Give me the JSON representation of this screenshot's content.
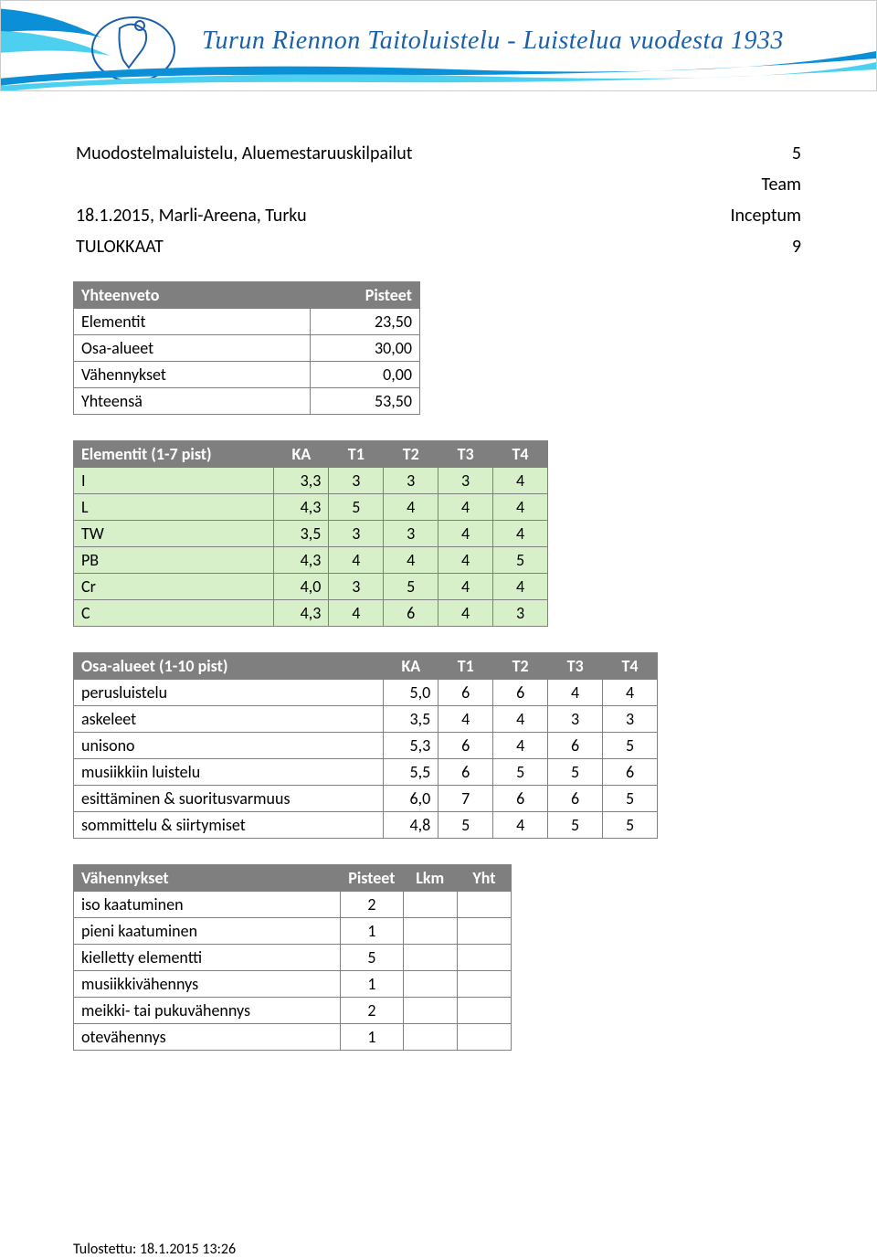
{
  "banner": {
    "title_text": "Turun Riennon Taitoluistelu - Luistelua vuodesta 1933",
    "title_color": "#1b5fa8",
    "swoosh_blue": "#0b8fd6",
    "swoosh_cyan": "#4dd0f0"
  },
  "meta": {
    "competition": "Muodostelmaluistelu, Aluemestaruuskilpailut",
    "date_venue": "18.1.2015, Marli-Areena, Turku",
    "category": "TULOKKAAT",
    "rank": "5",
    "team_label": "Team",
    "team_name": "Inceptum",
    "count": "9"
  },
  "summary": {
    "header": "Yhteenveto",
    "pisteet_header": "Pisteet",
    "rows": [
      {
        "label": "Elementit",
        "value": "23,50"
      },
      {
        "label": "Osa-alueet",
        "value": "30,00"
      },
      {
        "label": "Vähennykset",
        "value": "0,00"
      },
      {
        "label": "Yhteensä",
        "value": "53,50"
      }
    ]
  },
  "elements": {
    "header": "Elementit (1-7 pist)",
    "cols": [
      "KA",
      "T1",
      "T2",
      "T3",
      "T4"
    ],
    "row_bg": "#d7f0c9",
    "rows": [
      {
        "label": "I",
        "ka": "3,3",
        "t": [
          "3",
          "3",
          "3",
          "4"
        ]
      },
      {
        "label": "L",
        "ka": "4,3",
        "t": [
          "5",
          "4",
          "4",
          "4"
        ]
      },
      {
        "label": "TW",
        "ka": "3,5",
        "t": [
          "3",
          "3",
          "4",
          "4"
        ]
      },
      {
        "label": "PB",
        "ka": "4,3",
        "t": [
          "4",
          "4",
          "4",
          "5"
        ]
      },
      {
        "label": "Cr",
        "ka": "4,0",
        "t": [
          "3",
          "5",
          "4",
          "4"
        ]
      },
      {
        "label": "C",
        "ka": "4,3",
        "t": [
          "4",
          "6",
          "4",
          "3"
        ]
      }
    ]
  },
  "osa": {
    "header": "Osa-alueet (1-10 pist)",
    "cols": [
      "KA",
      "T1",
      "T2",
      "T3",
      "T4"
    ],
    "rows": [
      {
        "label": "perusluistelu",
        "ka": "5,0",
        "t": [
          "6",
          "6",
          "4",
          "4"
        ]
      },
      {
        "label": "askeleet",
        "ka": "3,5",
        "t": [
          "4",
          "4",
          "3",
          "3"
        ]
      },
      {
        "label": "unisono",
        "ka": "5,3",
        "t": [
          "6",
          "4",
          "6",
          "5"
        ]
      },
      {
        "label": "musiikkiin luistelu",
        "ka": "5,5",
        "t": [
          "6",
          "5",
          "5",
          "6"
        ]
      },
      {
        "label": "esittäminen & suoritusvarmuus",
        "ka": "6,0",
        "t": [
          "7",
          "6",
          "6",
          "5"
        ]
      },
      {
        "label": "sommittelu & siirtymiset",
        "ka": "4,8",
        "t": [
          "5",
          "4",
          "5",
          "5"
        ]
      }
    ]
  },
  "vah": {
    "header": "Vähennykset",
    "cols": [
      "Pisteet",
      "Lkm",
      "Yht"
    ],
    "rows": [
      {
        "label": "iso kaatuminen",
        "pisteet": "2",
        "lkm": "",
        "yht": ""
      },
      {
        "label": "pieni kaatuminen",
        "pisteet": "1",
        "lkm": "",
        "yht": ""
      },
      {
        "label": "kielletty elementti",
        "pisteet": "5",
        "lkm": "",
        "yht": ""
      },
      {
        "label": "musiikkivähennys",
        "pisteet": "1",
        "lkm": "",
        "yht": ""
      },
      {
        "label": "meikki- tai pukuvähennys",
        "pisteet": "2",
        "lkm": "",
        "yht": ""
      },
      {
        "label": "otevähennys",
        "pisteet": "1",
        "lkm": "",
        "yht": ""
      }
    ]
  },
  "footer": {
    "printed": "Tulostettu: 18.1.2015 13:26"
  }
}
